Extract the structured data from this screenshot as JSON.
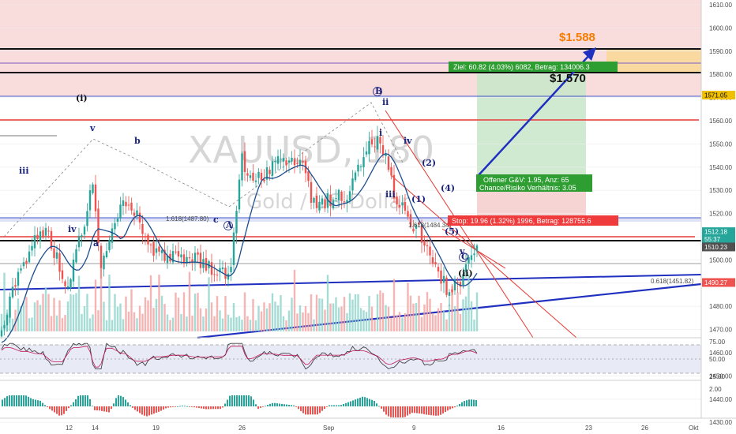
{
  "chart_data": {
    "type": "candlestick",
    "watermark_symbol": "XAUUSD, 180",
    "watermark_name": "Gold  /  US-Dollar",
    "price_axis_ticks": [
      1610,
      1600,
      1590,
      1580,
      1570,
      1560,
      1550,
      1540,
      1530,
      1520,
      1510,
      1500,
      1490,
      1480,
      1470,
      1460,
      1450,
      1440,
      1430
    ],
    "date_axis_ticks": [
      "12",
      "14",
      "19",
      "26",
      "Sep",
      "9",
      "16",
      "23",
      "26",
      "Okt"
    ],
    "price_badges": [
      {
        "text": "1571.05",
        "price": 1571.05,
        "color": "#f0c000",
        "fg": "#000000"
      },
      {
        "text": "1512.18",
        "price": 1512.18,
        "color": "#26a69a",
        "fg": "#ffffff"
      },
      {
        "text": "55:37",
        "price": 1508.9,
        "color": "#26a69a",
        "fg": "#ffffff"
      },
      {
        "text": "1510.23",
        "price": 1505.6,
        "color": "#505050",
        "fg": "#ffffff"
      },
      {
        "text": "1490.27",
        "price": 1490.27,
        "color": "#ef5350",
        "fg": "#ffffff"
      }
    ],
    "target_labels": [
      {
        "text": "$1.588",
        "color": "#f57c00"
      },
      {
        "text": "$1.570",
        "color": "#111111"
      }
    ],
    "trade": {
      "entry": 1512.2,
      "target": 1573.0,
      "stop": 1492.3,
      "target_label": "Ziel: 60.82 (4.03%) 6082, Betrag: 134006.3",
      "open_label": "Offener G&V: 1.95, Anz: 65",
      "ratio_label": "Chance/Risiko Verhältnis: 3.05",
      "stop_label": "Stop: 19.96 (1.32%) 1996, Betrag: 128755.6"
    },
    "wave_labels": [
      "(i)",
      "iii",
      "iv",
      "v",
      "a",
      "b",
      "c",
      "A",
      "B",
      "C",
      "ii",
      "i",
      "iv",
      "iii",
      "(1)",
      "(2)",
      "(4)",
      "(5)",
      "v",
      "(ii)"
    ],
    "fib_labels": [
      "1.618(1487.80)",
      "1.618(1484.34)",
      "0.618(1451.82)"
    ],
    "rsi_axis_ticks": [
      "75.00",
      "50.00",
      "25.00"
    ],
    "macd_axis_ticks": [
      "2.00"
    ],
    "colors": {
      "up": "#26a69a",
      "down": "#ef5350",
      "resistance_zone": "#f8d7d7",
      "target_zone": "#c8e6c9",
      "stop_zone": "#f9d4d4",
      "blue_line": "#1f2fbf",
      "ma": "#1e4f8f"
    }
  }
}
